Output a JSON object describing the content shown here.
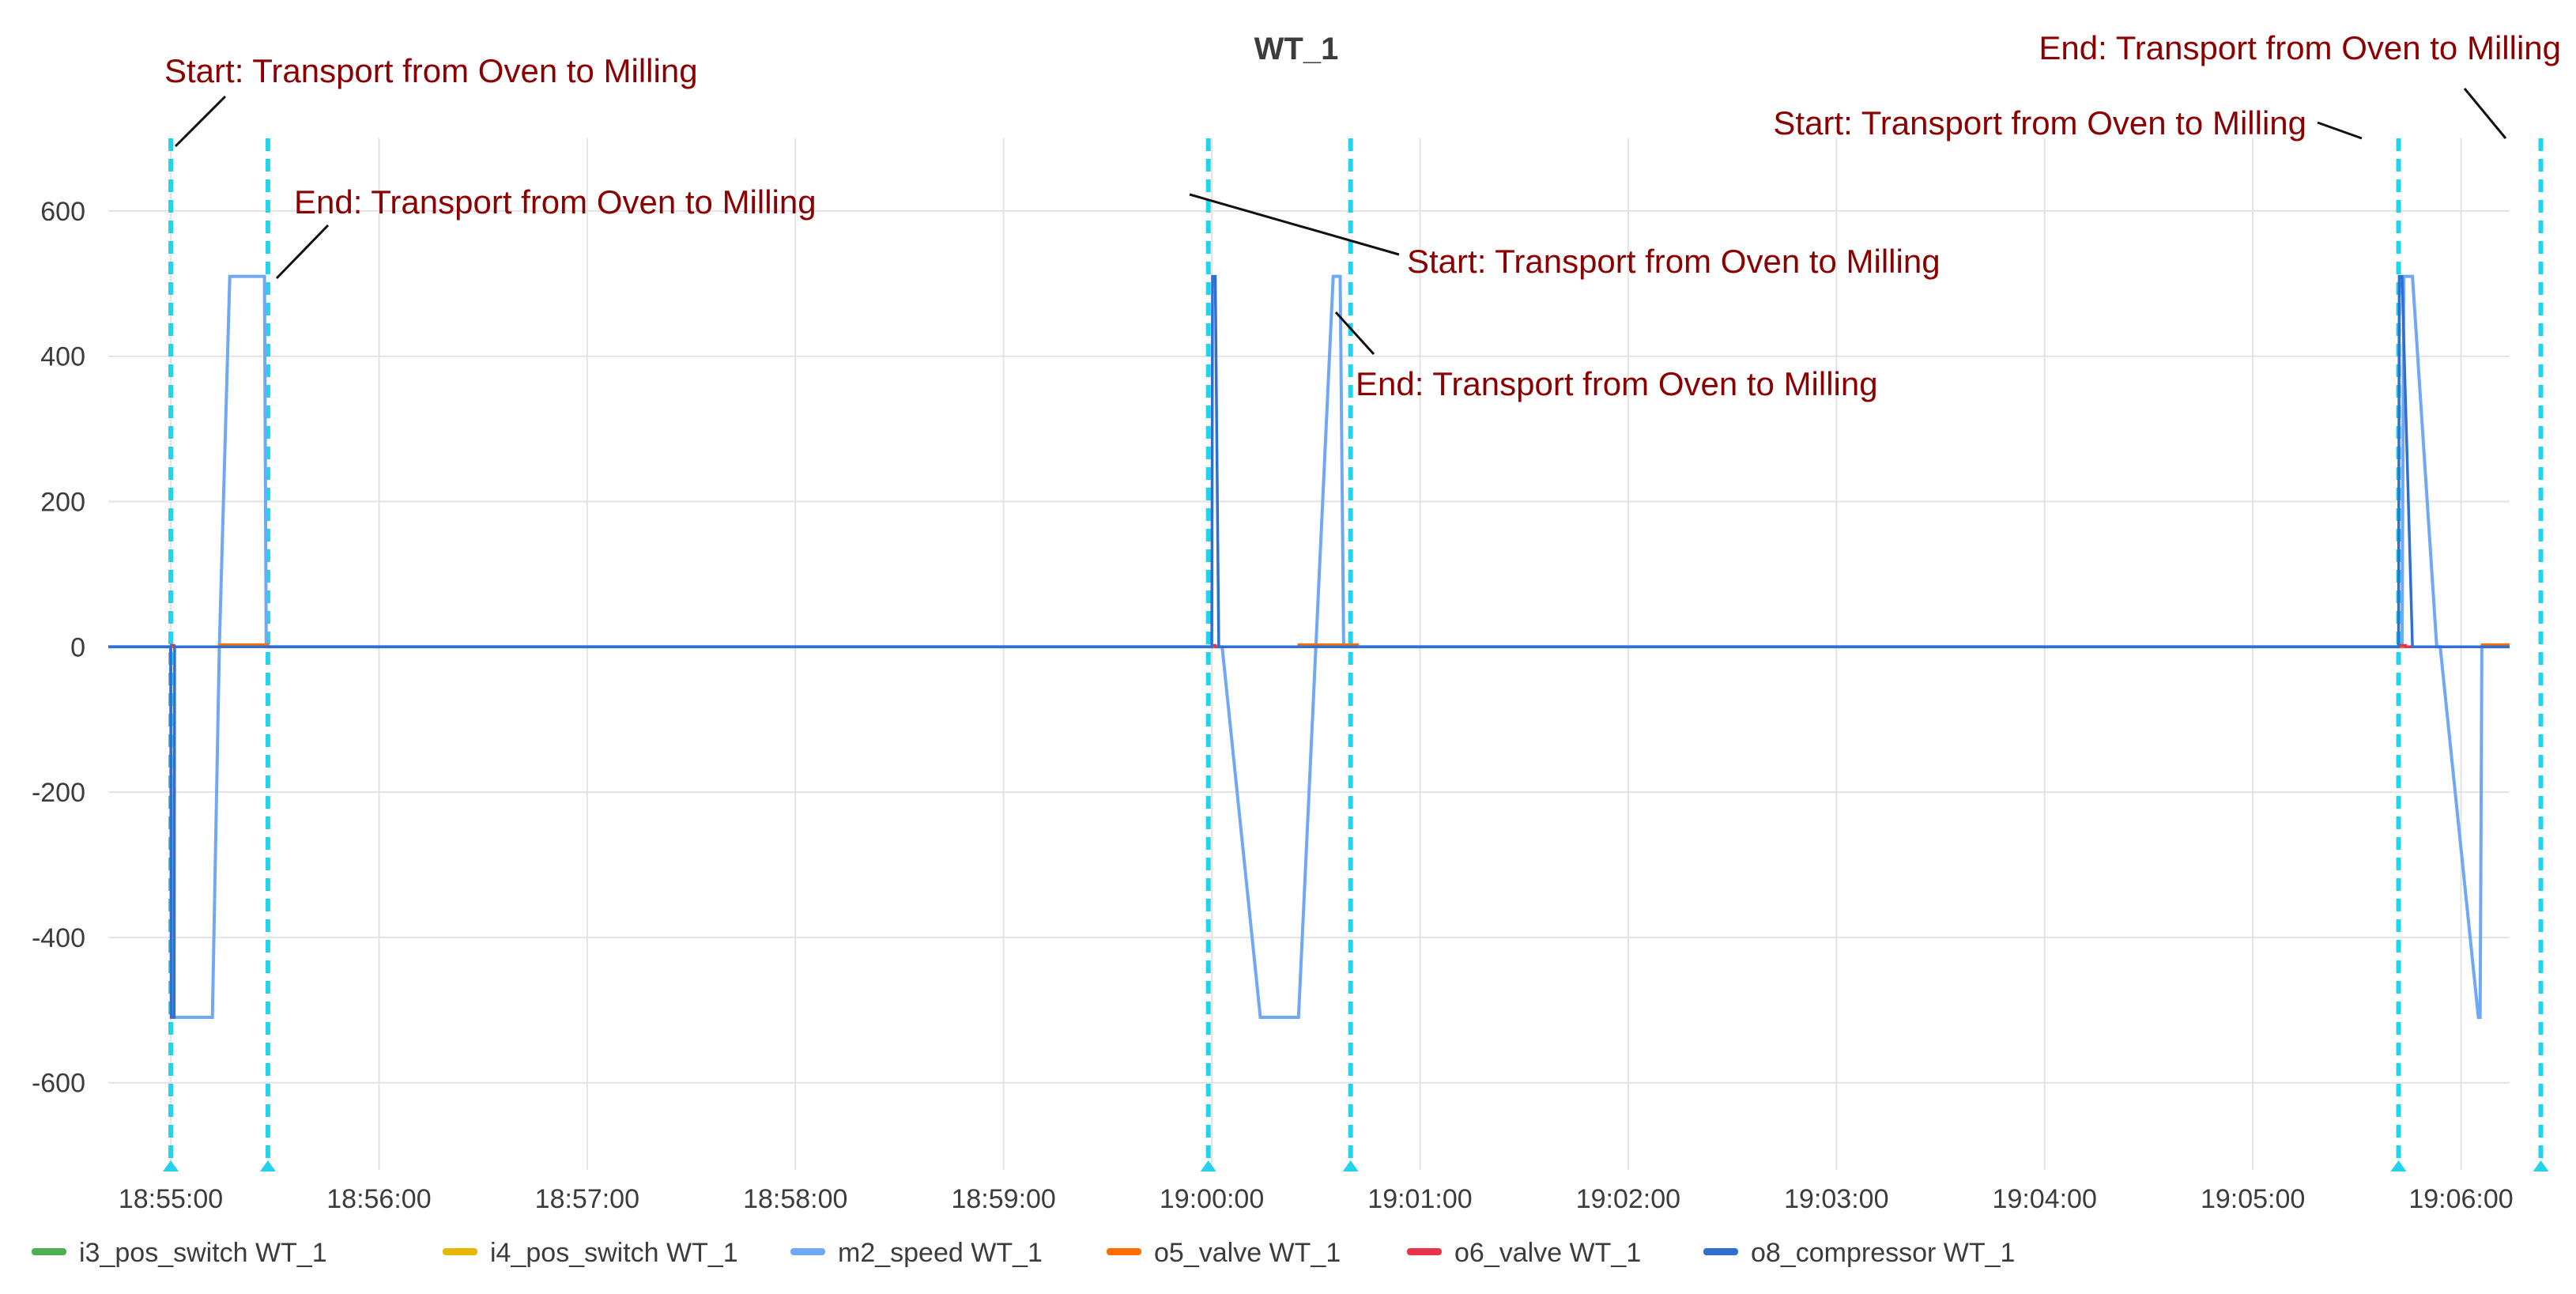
{
  "chart_data": {
    "type": "line",
    "title": "WT_1",
    "xlabel": "",
    "ylabel": "",
    "x_tick_labels": [
      "18:55:00",
      "18:56:00",
      "18:57:00",
      "18:58:00",
      "18:59:00",
      "19:00:00",
      "19:01:00",
      "19:02:00",
      "19:03:00",
      "19:04:00",
      "19:05:00",
      "19:06:00"
    ],
    "x_tick_values": [
      0,
      60,
      120,
      180,
      240,
      300,
      360,
      420,
      480,
      540,
      600,
      660
    ],
    "y_tick_labels": [
      "600",
      "400",
      "200",
      "0",
      "-200",
      "-400",
      "-600"
    ],
    "y_tick_values": [
      600,
      400,
      200,
      0,
      -200,
      -400,
      -600
    ],
    "xlim": [
      -18,
      674
    ],
    "ylim": [
      -720,
      700
    ],
    "grid": true,
    "legend_position": "bottom",
    "series": [
      {
        "name": "i3_pos_switch WT_1",
        "color": "#4caf50",
        "x": [
          -18,
          674
        ],
        "y": [
          0,
          0
        ]
      },
      {
        "name": "i4_pos_switch WT_1",
        "color": "#e6b800",
        "x": [
          -18,
          674
        ],
        "y": [
          0,
          0
        ]
      },
      {
        "name": "m2_speed WT_1",
        "color": "#6fa8f5",
        "x": [
          -18,
          0,
          0.5,
          1.5,
          12,
          14,
          17,
          27,
          27.5,
          28,
          299,
          300,
          301,
          303,
          314,
          325,
          335,
          337,
          338,
          341,
          642,
          643,
          643.5,
          646,
          653,
          654,
          665,
          665.5,
          666,
          674
        ],
        "y": [
          0,
          0,
          -510,
          -510,
          -510,
          0,
          510,
          510,
          0,
          0,
          0,
          0,
          0,
          0,
          -510,
          -510,
          510,
          510,
          0,
          0,
          0,
          0,
          510,
          510,
          0,
          0,
          -510,
          -510,
          0,
          0
        ]
      },
      {
        "name": "o5_valve WT_1",
        "color": "#ff6d00",
        "x": [
          -18,
          14,
          14.1,
          28,
          28.1,
          325,
          325.1,
          342,
          342.1,
          666,
          666.1,
          674
        ],
        "y": [
          0,
          0,
          3,
          3,
          0,
          0,
          3,
          3,
          0,
          0,
          3,
          3
        ]
      },
      {
        "name": "o6_valve WT_1",
        "color": "#e8334a",
        "x": [
          -18,
          0,
          0.1,
          1,
          1.1,
          300,
          300.1,
          301,
          301.1,
          642,
          642.1,
          644,
          644.1,
          674
        ],
        "y": [
          0,
          0,
          2,
          2,
          0,
          0,
          2,
          2,
          0,
          0,
          2,
          2,
          0,
          0
        ]
      },
      {
        "name": "o8_compressor WT_1",
        "color": "#2f6fd1",
        "x": [
          -18,
          0,
          0.1,
          1,
          1.1,
          300,
          300.2,
          301,
          302,
          303,
          304,
          642,
          642.2,
          643,
          646,
          647,
          648,
          674
        ],
        "y": [
          0,
          0,
          -510,
          -510,
          0,
          0,
          510,
          510,
          0,
          0,
          0,
          0,
          510,
          510,
          0,
          0,
          0,
          0
        ]
      }
    ],
    "event_markers": [
      {
        "x": 0,
        "label": "Start: Transport from Oven to Milling"
      },
      {
        "x": 28,
        "label": "End: Transport from Oven to Milling"
      },
      {
        "x": 299,
        "label": "Start: Transport from Oven to Milling"
      },
      {
        "x": 340,
        "label": "End: Transport from Oven to Milling"
      },
      {
        "x": 642,
        "label": "Start: Transport from Oven to Milling"
      },
      {
        "x": 683,
        "label": "End: Transport from Oven to Milling"
      }
    ],
    "marker_color": "#22d3ee"
  }
}
